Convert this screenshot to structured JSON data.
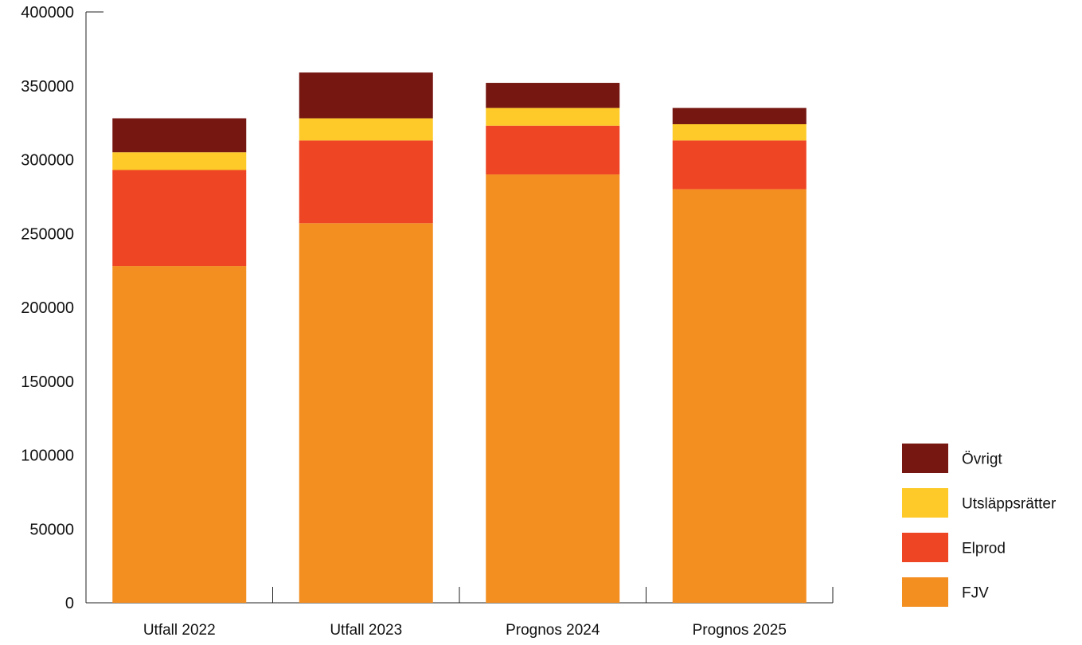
{
  "chart_data": {
    "type": "bar",
    "stacked": true,
    "categories": [
      "Utfall 2022",
      "Utfall 2023",
      "Prognos 2024",
      "Prognos 2025"
    ],
    "series": [
      {
        "name": "FJV",
        "values": [
          228000,
          257000,
          290000,
          280000
        ],
        "color": "#f38e21"
      },
      {
        "name": "Elprod",
        "values": [
          65000,
          56000,
          33000,
          33000
        ],
        "color": "#ee4524"
      },
      {
        "name": "Utsläppsrätter",
        "values": [
          12000,
          15000,
          12000,
          11000
        ],
        "color": "#fdca29"
      },
      {
        "name": "Övrigt",
        "values": [
          23000,
          31000,
          17000,
          11000
        ],
        "color": "#761711"
      }
    ],
    "ylim": [
      0,
      400000
    ],
    "yticks": [
      "0",
      "50000",
      "100000",
      "150000",
      "200000",
      "250000",
      "300000",
      "350000",
      "400000"
    ],
    "grid": false,
    "legend": {
      "position": "right-bottom",
      "order": [
        "Övrigt",
        "Utsläppsrätter",
        "Elprod",
        "FJV"
      ]
    }
  }
}
